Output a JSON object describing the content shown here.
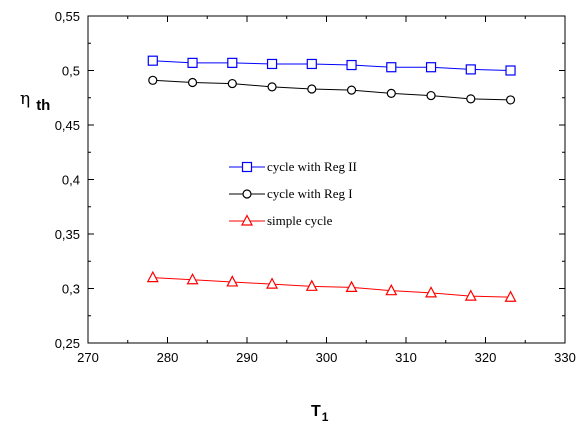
{
  "chart_data": {
    "type": "line",
    "xlabel": "T",
    "xlabel_sub": "1",
    "ylabel": "η",
    "ylabel_sub": "th",
    "xlim": [
      270,
      330
    ],
    "ylim": [
      0.25,
      0.55
    ],
    "x_ticks": [
      270,
      280,
      290,
      300,
      310,
      320,
      330
    ],
    "x_tick_labels": [
      "270",
      "280",
      "290",
      "300",
      "310",
      "320",
      "330"
    ],
    "y_ticks": [
      0.25,
      0.3,
      0.35,
      0.4,
      0.45,
      0.5,
      0.55
    ],
    "y_tick_labels": [
      "0,25",
      "0,3",
      "0,35",
      "0,4",
      "0,45",
      "0,5",
      "0,55"
    ],
    "grid": false,
    "legend_position": "center",
    "x": [
      278.15,
      283.15,
      288.15,
      293.15,
      298.15,
      303.15,
      308.15,
      313.15,
      318.15,
      323.15
    ],
    "series": [
      {
        "name": "cycle with Reg II",
        "color": "#0000ff",
        "marker": "square",
        "values": [
          0.509,
          0.507,
          0.507,
          0.506,
          0.506,
          0.505,
          0.503,
          0.503,
          0.501,
          0.5
        ]
      },
      {
        "name": "cycle with Reg I",
        "color": "#000000",
        "marker": "circle",
        "values": [
          0.491,
          0.489,
          0.488,
          0.485,
          0.483,
          0.482,
          0.479,
          0.477,
          0.474,
          0.473
        ]
      },
      {
        "name": "simple cycle",
        "color": "#ff0000",
        "marker": "triangle",
        "values": [
          0.31,
          0.308,
          0.306,
          0.304,
          0.302,
          0.301,
          0.298,
          0.296,
          0.293,
          0.292
        ]
      }
    ]
  }
}
